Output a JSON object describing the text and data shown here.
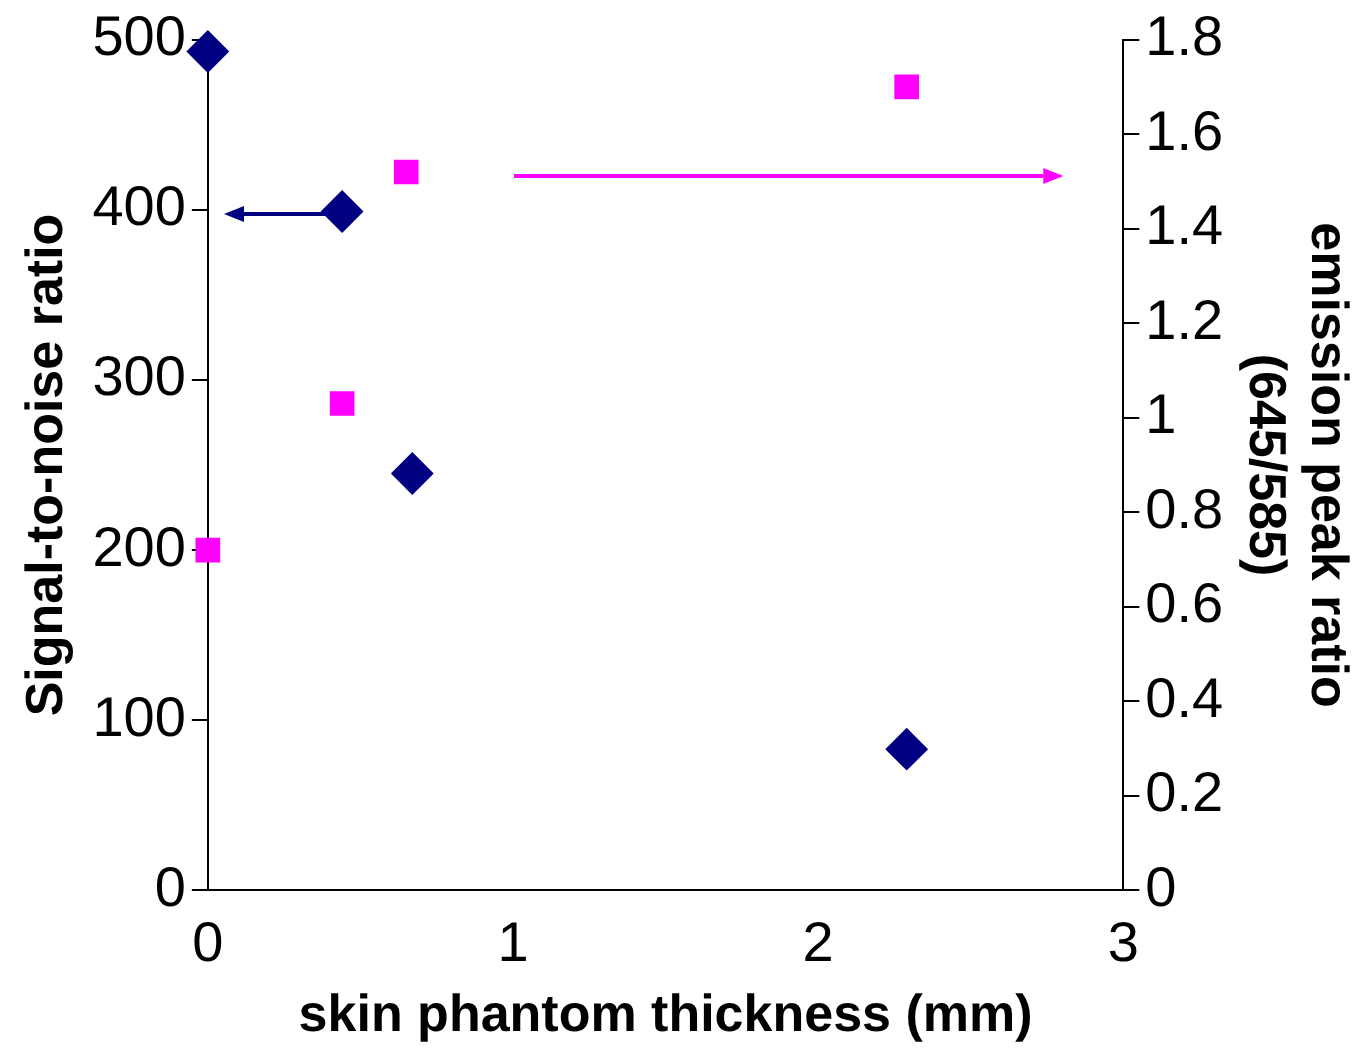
{
  "chart_data": {
    "type": "scatter",
    "xlabel": "skin phantom thickness (mm)",
    "ylabel": "Signal-to-noise ratio",
    "y2label": "emission peak ratio\n(645/585)",
    "xlim": [
      0,
      3
    ],
    "xticks": [
      0,
      1,
      2,
      3
    ],
    "ylim": [
      0,
      500
    ],
    "yticks": [
      0,
      100,
      200,
      300,
      400,
      500
    ],
    "y2lim": [
      0,
      1.8
    ],
    "y2ticks": [
      0,
      0.2,
      0.4,
      0.6,
      0.8,
      1,
      1.2,
      1.4,
      1.6,
      1.8
    ],
    "grid": false,
    "legend": false,
    "series": [
      {
        "color": "#000080",
        "marker": "diamond",
        "axis": "y",
        "x": [
          0,
          0.44,
          0.67,
          2.29
        ],
        "values": [
          493,
          399,
          245,
          83
        ]
      },
      {
        "color": "#ff00ff",
        "marker": "square",
        "axis": "y2",
        "x": [
          0,
          0.44,
          0.65,
          2.29
        ],
        "values": [
          0.72,
          1.03,
          1.52,
          1.7
        ]
      }
    ]
  }
}
